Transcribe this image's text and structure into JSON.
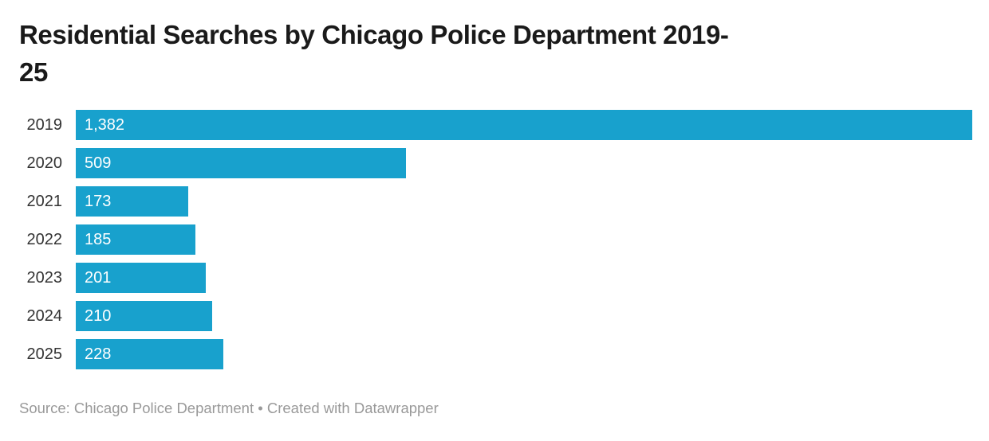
{
  "title": {
    "line1": "Residential Searches by Chicago Police Department 2019-",
    "line2": "25"
  },
  "chart_data": {
    "type": "bar",
    "orientation": "horizontal",
    "title": "Residential Searches by Chicago Police Department 2019-25",
    "categories": [
      "2019",
      "2020",
      "2021",
      "2022",
      "2023",
      "2024",
      "2025"
    ],
    "values": [
      1382,
      509,
      173,
      185,
      201,
      210,
      228
    ],
    "value_labels": [
      "1,382",
      "509",
      "173",
      "185",
      "201",
      "210",
      "228"
    ],
    "xlim": [
      0,
      1382
    ],
    "grid": false,
    "legend": false,
    "value_label_position": "inside-left",
    "bar_color": "#18a1cd",
    "source": "Source: Chicago Police Department • Created with Datawrapper"
  },
  "footer": {
    "text": "Source: Chicago Police Department • Created with Datawrapper"
  },
  "colors": {
    "bar": "#18a1cd",
    "title": "#1a1a1a",
    "category_label": "#333333",
    "value_label": "#ffffff",
    "footer": "#999999",
    "background": "#ffffff"
  }
}
